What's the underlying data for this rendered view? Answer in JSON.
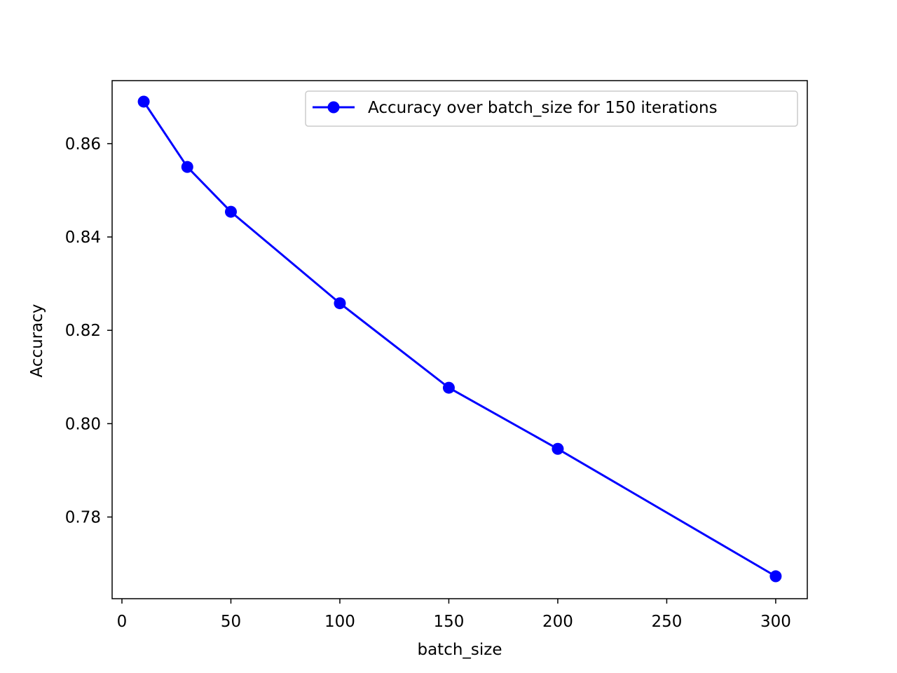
{
  "chart_data": {
    "type": "line",
    "title": "",
    "xlabel": "batch_size",
    "ylabel": "Accuracy",
    "xlim": [
      -4.5,
      314.5
    ],
    "ylim": [
      0.7625,
      0.8735
    ],
    "xticks": [
      0,
      50,
      100,
      150,
      200,
      250,
      300
    ],
    "xtick_labels": [
      "0",
      "50",
      "100",
      "150",
      "200",
      "250",
      "300"
    ],
    "yticks": [
      0.78,
      0.8,
      0.82,
      0.84,
      0.86
    ],
    "ytick_labels": [
      "0.78",
      "0.80",
      "0.82",
      "0.84",
      "0.86"
    ],
    "grid": false,
    "legend_position": "top-right",
    "series": [
      {
        "name": "Accuracy over batch_size for 150 iterations",
        "color": "#0000ff",
        "marker": "circle",
        "x": [
          10,
          30,
          50,
          100,
          150,
          200,
          300
        ],
        "y": [
          0.869,
          0.855,
          0.8454,
          0.8258,
          0.8077,
          0.7946,
          0.7673
        ]
      }
    ]
  }
}
